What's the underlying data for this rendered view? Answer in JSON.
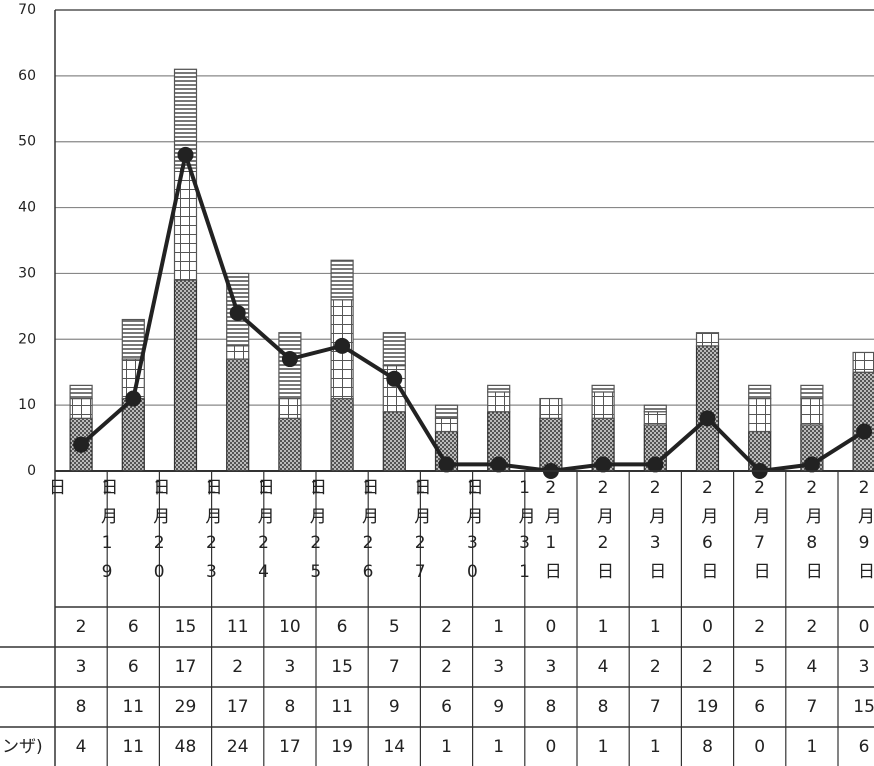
{
  "chart_data": {
    "type": "bar",
    "categories": [
      "1月19日",
      "1月20日",
      "1月23日",
      "1月24日",
      "1月25日",
      "1月26日",
      "1月27日",
      "1月30日",
      "1月31日",
      "2月1日",
      "2月2日",
      "2月3日",
      "2月6日",
      "2月7日",
      "2月8日",
      "2月9日"
    ],
    "series": [
      {
        "color": "#555555",
        "pattern": "hatch",
        "values": [
          2,
          6,
          15,
          11,
          10,
          6,
          5,
          2,
          1,
          0,
          1,
          1,
          0,
          2,
          2,
          0
        ]
      },
      {
        "color": "#555555",
        "pattern": "grid",
        "values": [
          3,
          6,
          17,
          2,
          3,
          15,
          7,
          2,
          3,
          3,
          4,
          2,
          2,
          5,
          4,
          3
        ]
      },
      {
        "color": "#333333",
        "pattern": "dots",
        "values": [
          8,
          11,
          29,
          17,
          8,
          11,
          9,
          6,
          9,
          8,
          8,
          7,
          19,
          6,
          7,
          15
        ]
      },
      {
        "name": "ンザ)",
        "type": "line",
        "color": "#222222",
        "values": [
          4,
          11,
          48,
          24,
          17,
          19,
          14,
          1,
          1,
          0,
          1,
          1,
          8,
          0,
          1,
          6
        ]
      }
    ],
    "ylim": [
      0,
      70
    ],
    "yticks": [
      0,
      10,
      20,
      30,
      40,
      50,
      60,
      70
    ],
    "grid": true
  }
}
